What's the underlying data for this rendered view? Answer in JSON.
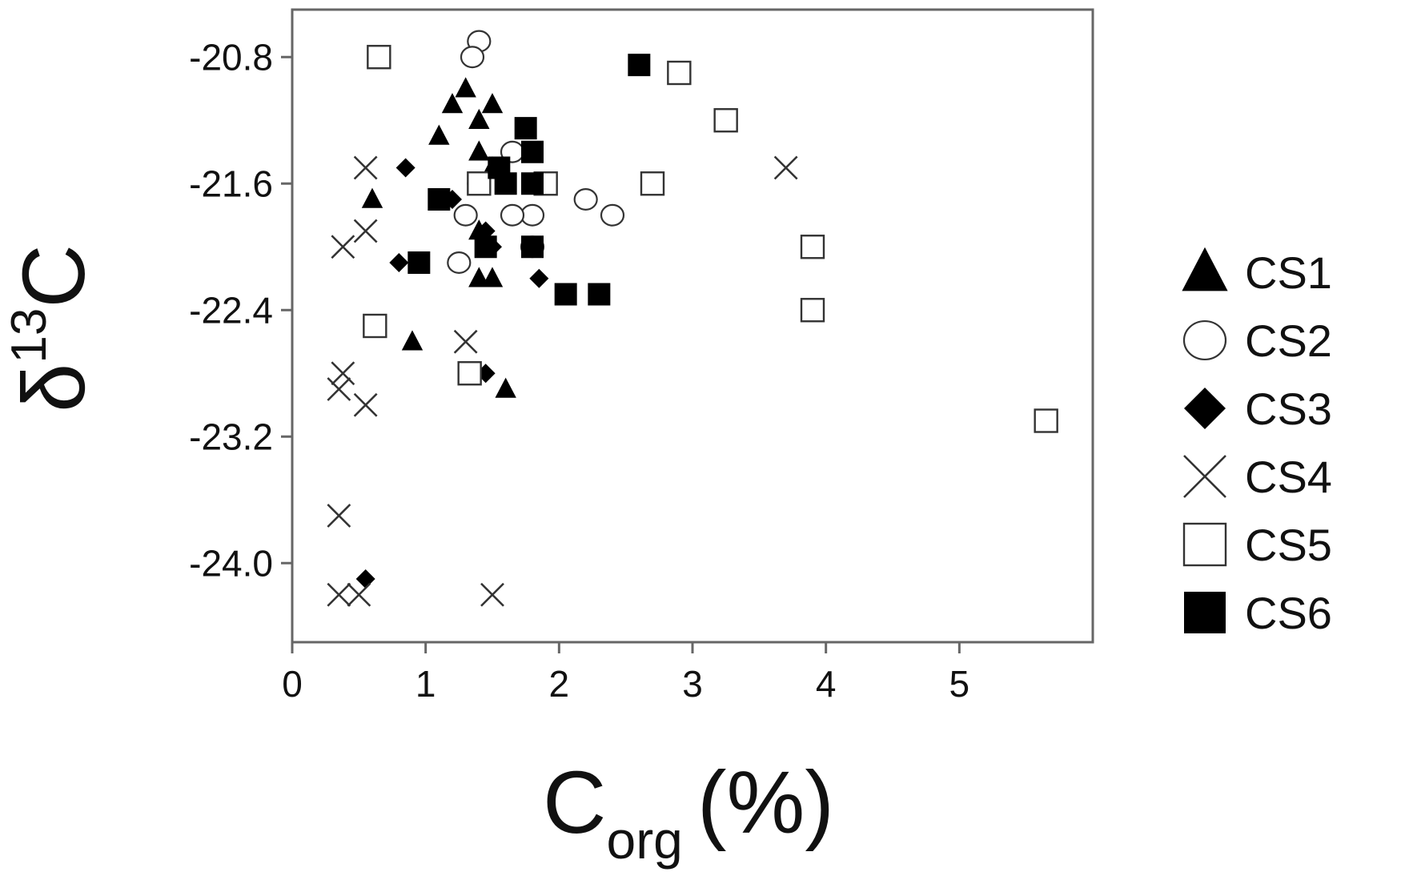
{
  "chart_data": {
    "type": "scatter",
    "xlabel": {
      "main": "C",
      "sub": "org",
      "unit": "(%)"
    },
    "ylabel": {
      "main": "δ",
      "sup": "13",
      "tail": "C"
    },
    "xlim": [
      0,
      6
    ],
    "ylim": [
      -24.5,
      -20.5
    ],
    "x_ticks": [
      "0",
      "1",
      "2",
      "3",
      "4",
      "5"
    ],
    "y_ticks": [
      "-20.8",
      "-21.6",
      "-22.4",
      "-23.2",
      "-24.0"
    ],
    "grid": false,
    "legend_position": "right",
    "series": [
      {
        "name": "CS1",
        "marker": "triangle-filled",
        "points": [
          [
            1.3,
            -21.0
          ],
          [
            1.2,
            -21.1
          ],
          [
            1.5,
            -21.1
          ],
          [
            1.4,
            -21.2
          ],
          [
            1.1,
            -21.3
          ],
          [
            1.4,
            -21.4
          ],
          [
            1.5,
            -21.5
          ],
          [
            0.6,
            -21.7
          ],
          [
            1.4,
            -21.9
          ],
          [
            1.4,
            -22.2
          ],
          [
            1.5,
            -22.2
          ],
          [
            0.9,
            -22.6
          ],
          [
            1.6,
            -22.9
          ]
        ]
      },
      {
        "name": "CS2",
        "marker": "circle-open",
        "points": [
          [
            1.4,
            -20.7
          ],
          [
            1.35,
            -20.8
          ],
          [
            1.65,
            -21.4
          ],
          [
            1.4,
            -21.6
          ],
          [
            1.3,
            -21.8
          ],
          [
            1.8,
            -21.8
          ],
          [
            2.2,
            -21.7
          ],
          [
            2.4,
            -21.8
          ],
          [
            1.65,
            -21.8
          ],
          [
            1.8,
            -22.0
          ],
          [
            1.25,
            -22.1
          ]
        ]
      },
      {
        "name": "CS3",
        "marker": "diamond-filled",
        "points": [
          [
            0.85,
            -21.5
          ],
          [
            1.2,
            -21.7
          ],
          [
            1.45,
            -21.9
          ],
          [
            1.5,
            -22.0
          ],
          [
            0.8,
            -22.1
          ],
          [
            1.85,
            -22.2
          ],
          [
            1.45,
            -22.8
          ],
          [
            0.55,
            -24.1
          ]
        ]
      },
      {
        "name": "CS4",
        "marker": "cross",
        "points": [
          [
            0.55,
            -21.5
          ],
          [
            0.55,
            -21.9
          ],
          [
            0.38,
            -22.0
          ],
          [
            1.3,
            -22.6
          ],
          [
            0.38,
            -22.8
          ],
          [
            0.35,
            -22.9
          ],
          [
            0.55,
            -23.0
          ],
          [
            3.7,
            -21.5
          ],
          [
            0.35,
            -23.7
          ],
          [
            0.5,
            -24.2
          ],
          [
            0.35,
            -24.2
          ],
          [
            1.5,
            -24.2
          ]
        ]
      },
      {
        "name": "CS5",
        "marker": "square-open",
        "points": [
          [
            0.65,
            -20.8
          ],
          [
            2.9,
            -20.9
          ],
          [
            3.25,
            -21.2
          ],
          [
            2.7,
            -21.6
          ],
          [
            1.9,
            -21.6
          ],
          [
            1.4,
            -21.6
          ],
          [
            3.9,
            -22.0
          ],
          [
            3.9,
            -22.4
          ],
          [
            0.62,
            -22.5
          ],
          [
            1.33,
            -22.8
          ],
          [
            5.65,
            -23.1
          ]
        ]
      },
      {
        "name": "CS6",
        "marker": "square-filled",
        "points": [
          [
            2.6,
            -20.85
          ],
          [
            1.75,
            -21.25
          ],
          [
            1.8,
            -21.4
          ],
          [
            1.55,
            -21.5
          ],
          [
            1.6,
            -21.6
          ],
          [
            1.8,
            -21.6
          ],
          [
            1.1,
            -21.7
          ],
          [
            1.45,
            -22.0
          ],
          [
            1.8,
            -22.0
          ],
          [
            0.95,
            -22.1
          ],
          [
            2.05,
            -22.3
          ],
          [
            2.3,
            -22.3
          ]
        ]
      }
    ]
  }
}
